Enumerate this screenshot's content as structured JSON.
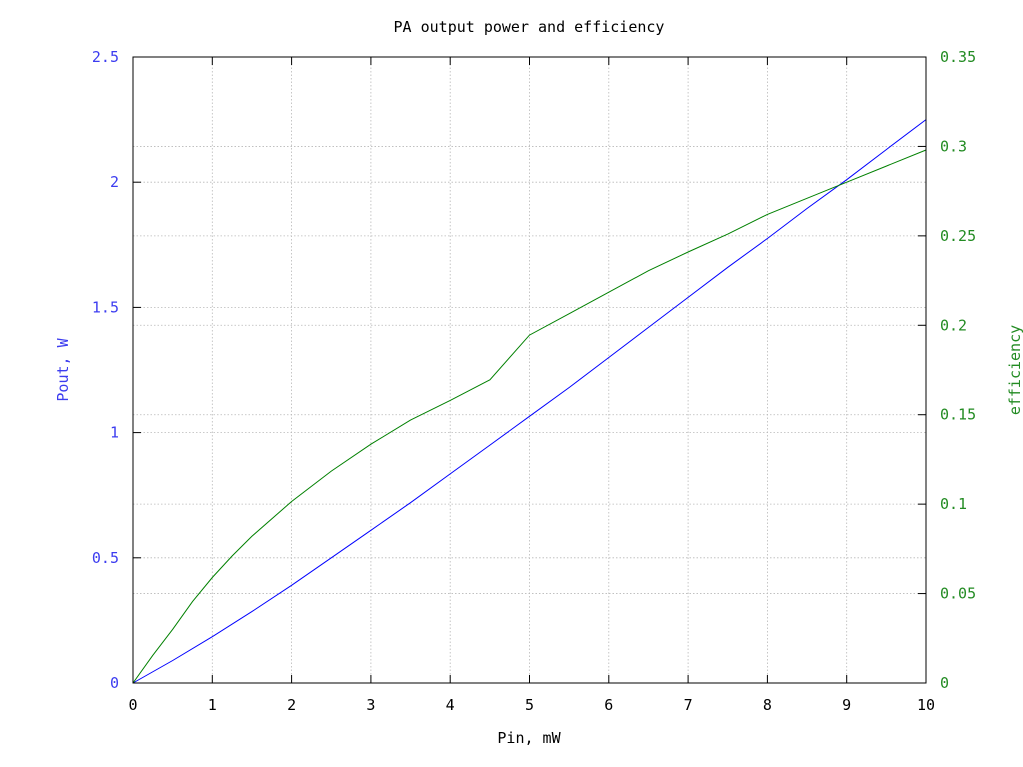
{
  "chart_data": {
    "type": "line",
    "title": "PA output power and efficiency",
    "xlabel": "Pin, mW",
    "ylabel_left": "Pout, W",
    "ylabel_right": "efficiency",
    "xlim": [
      0,
      10
    ],
    "ylim_left": [
      0,
      2.5
    ],
    "ylim_right": [
      0,
      0.35
    ],
    "xticks": [
      "0",
      "1",
      "2",
      "3",
      "4",
      "5",
      "6",
      "7",
      "8",
      "9",
      "10"
    ],
    "yticks_left": [
      "0",
      "0.5",
      "1",
      "1.5",
      "2",
      "2.5"
    ],
    "yticks_right": [
      "0",
      "0.05",
      "0.1",
      "0.15",
      "0.2",
      "0.25",
      "0.3",
      "0.35"
    ],
    "grid": true,
    "colors": {
      "left_axis": "#3c3cf0",
      "right_axis": "#228b22",
      "pout": "#0000ff",
      "efficiency": "#008000"
    },
    "series": [
      {
        "axis": "left",
        "x": [
          0,
          0.5,
          1,
          1.5,
          2,
          2.5,
          3,
          3.5,
          4,
          4.5,
          5,
          5.5,
          6,
          6.5,
          7,
          7.5,
          8,
          8.5,
          9,
          9.5,
          10
        ],
        "values": [
          0,
          0.09,
          0.185,
          0.285,
          0.39,
          0.5,
          0.61,
          0.72,
          0.835,
          0.95,
          1.065,
          1.18,
          1.3,
          1.42,
          1.54,
          1.66,
          1.775,
          1.895,
          2.01,
          2.13,
          2.25
        ]
      },
      {
        "axis": "right",
        "x": [
          0,
          0.25,
          0.5,
          0.75,
          1,
          1.25,
          1.5,
          2,
          2.5,
          3,
          3.5,
          4,
          4.5,
          5,
          5.5,
          6,
          6.5,
          7,
          7.5,
          8,
          8.5,
          9,
          9.5,
          10
        ],
        "values": [
          0,
          0.0155,
          0.03,
          0.0455,
          0.059,
          0.071,
          0.082,
          0.1015,
          0.1185,
          0.1335,
          0.147,
          0.158,
          0.1695,
          0.1945,
          0.2065,
          0.2185,
          0.2305,
          0.241,
          0.251,
          0.262,
          0.271,
          0.28,
          0.289,
          0.298
        ]
      }
    ]
  }
}
